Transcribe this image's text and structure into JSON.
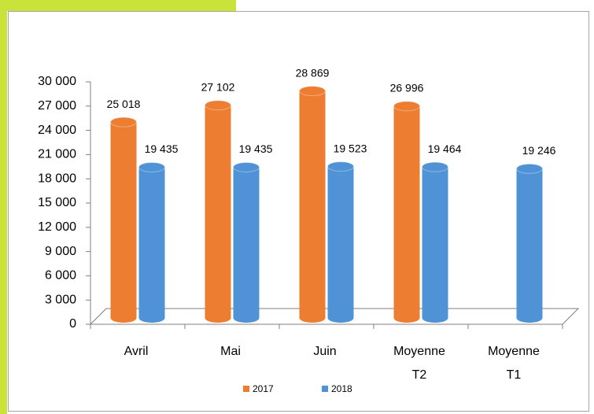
{
  "chart_data": {
    "type": "bar3d",
    "categories": [
      "Avril",
      "Mai",
      "Juin",
      "Moyenne T2",
      "Moyenne T1"
    ],
    "series": [
      {
        "name": "2017",
        "color": "#ed7d31",
        "values": [
          25018,
          27102,
          28869,
          26996,
          null
        ],
        "value_labels": [
          "25 018",
          "27 102",
          "28 869",
          "26 996",
          null
        ]
      },
      {
        "name": "2018",
        "color": "#4f93d6",
        "values": [
          19435,
          19435,
          19523,
          19464,
          19246
        ],
        "value_labels": [
          "19 435",
          "19 435",
          "19 523",
          "19 464",
          "19 246"
        ]
      }
    ],
    "ylim": [
      0,
      30000
    ],
    "yticks": [
      0,
      {
        "value": 3000,
        "label": "3 000"
      },
      {
        "value": 6000,
        "label": "6 000"
      },
      {
        "value": 9000,
        "label": "9 000"
      },
      {
        "value": 12000,
        "label": "12 000"
      },
      {
        "value": 15000,
        "label": "15 000"
      },
      {
        "value": 18000,
        "label": "18 000"
      },
      {
        "value": 21000,
        "label": "21 000"
      },
      {
        "value": 24000,
        "label": "24 000"
      },
      {
        "value": 27000,
        "label": "27 000"
      },
      {
        "value": 30000,
        "label": "30 000"
      }
    ],
    "legend": "bottom"
  }
}
